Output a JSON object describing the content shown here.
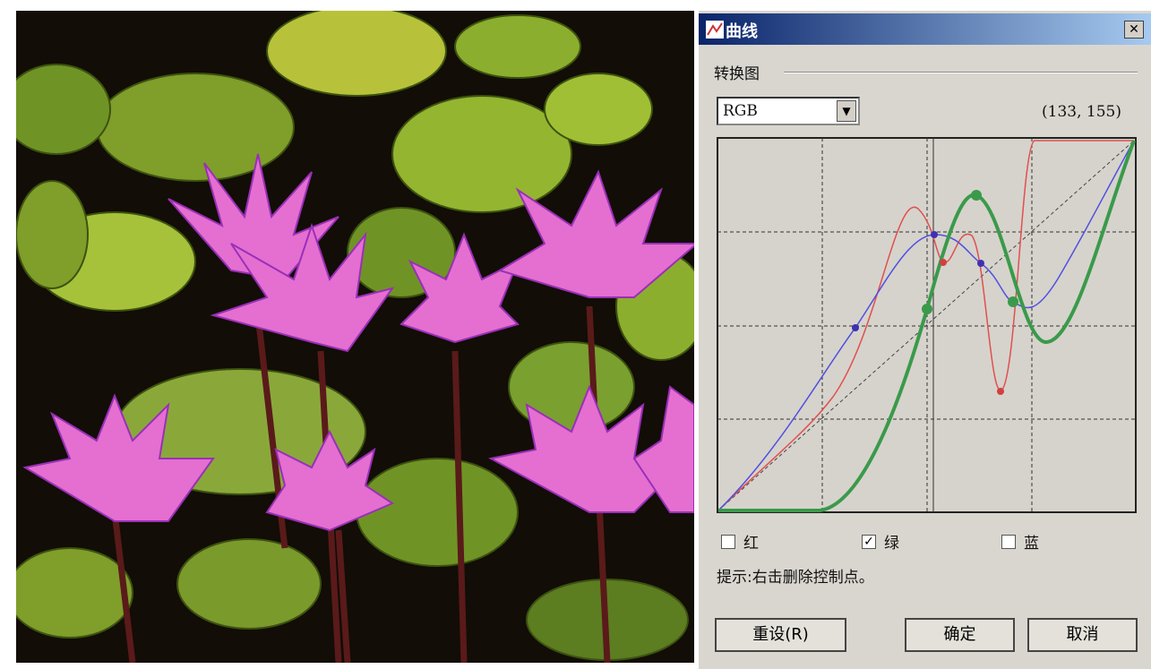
{
  "dialog": {
    "title": "曲线",
    "group_label": "转换图",
    "channel": "RGB",
    "coordinates": "(133, 155)",
    "checkboxes": [
      {
        "label": "红",
        "checked": false
      },
      {
        "label": "绿",
        "checked": true
      },
      {
        "label": "蓝",
        "checked": false
      }
    ],
    "hint": "提示:右击删除控制点。",
    "buttons": {
      "reset": "重设(R)",
      "ok": "确定",
      "cancel": "取消"
    }
  }
}
